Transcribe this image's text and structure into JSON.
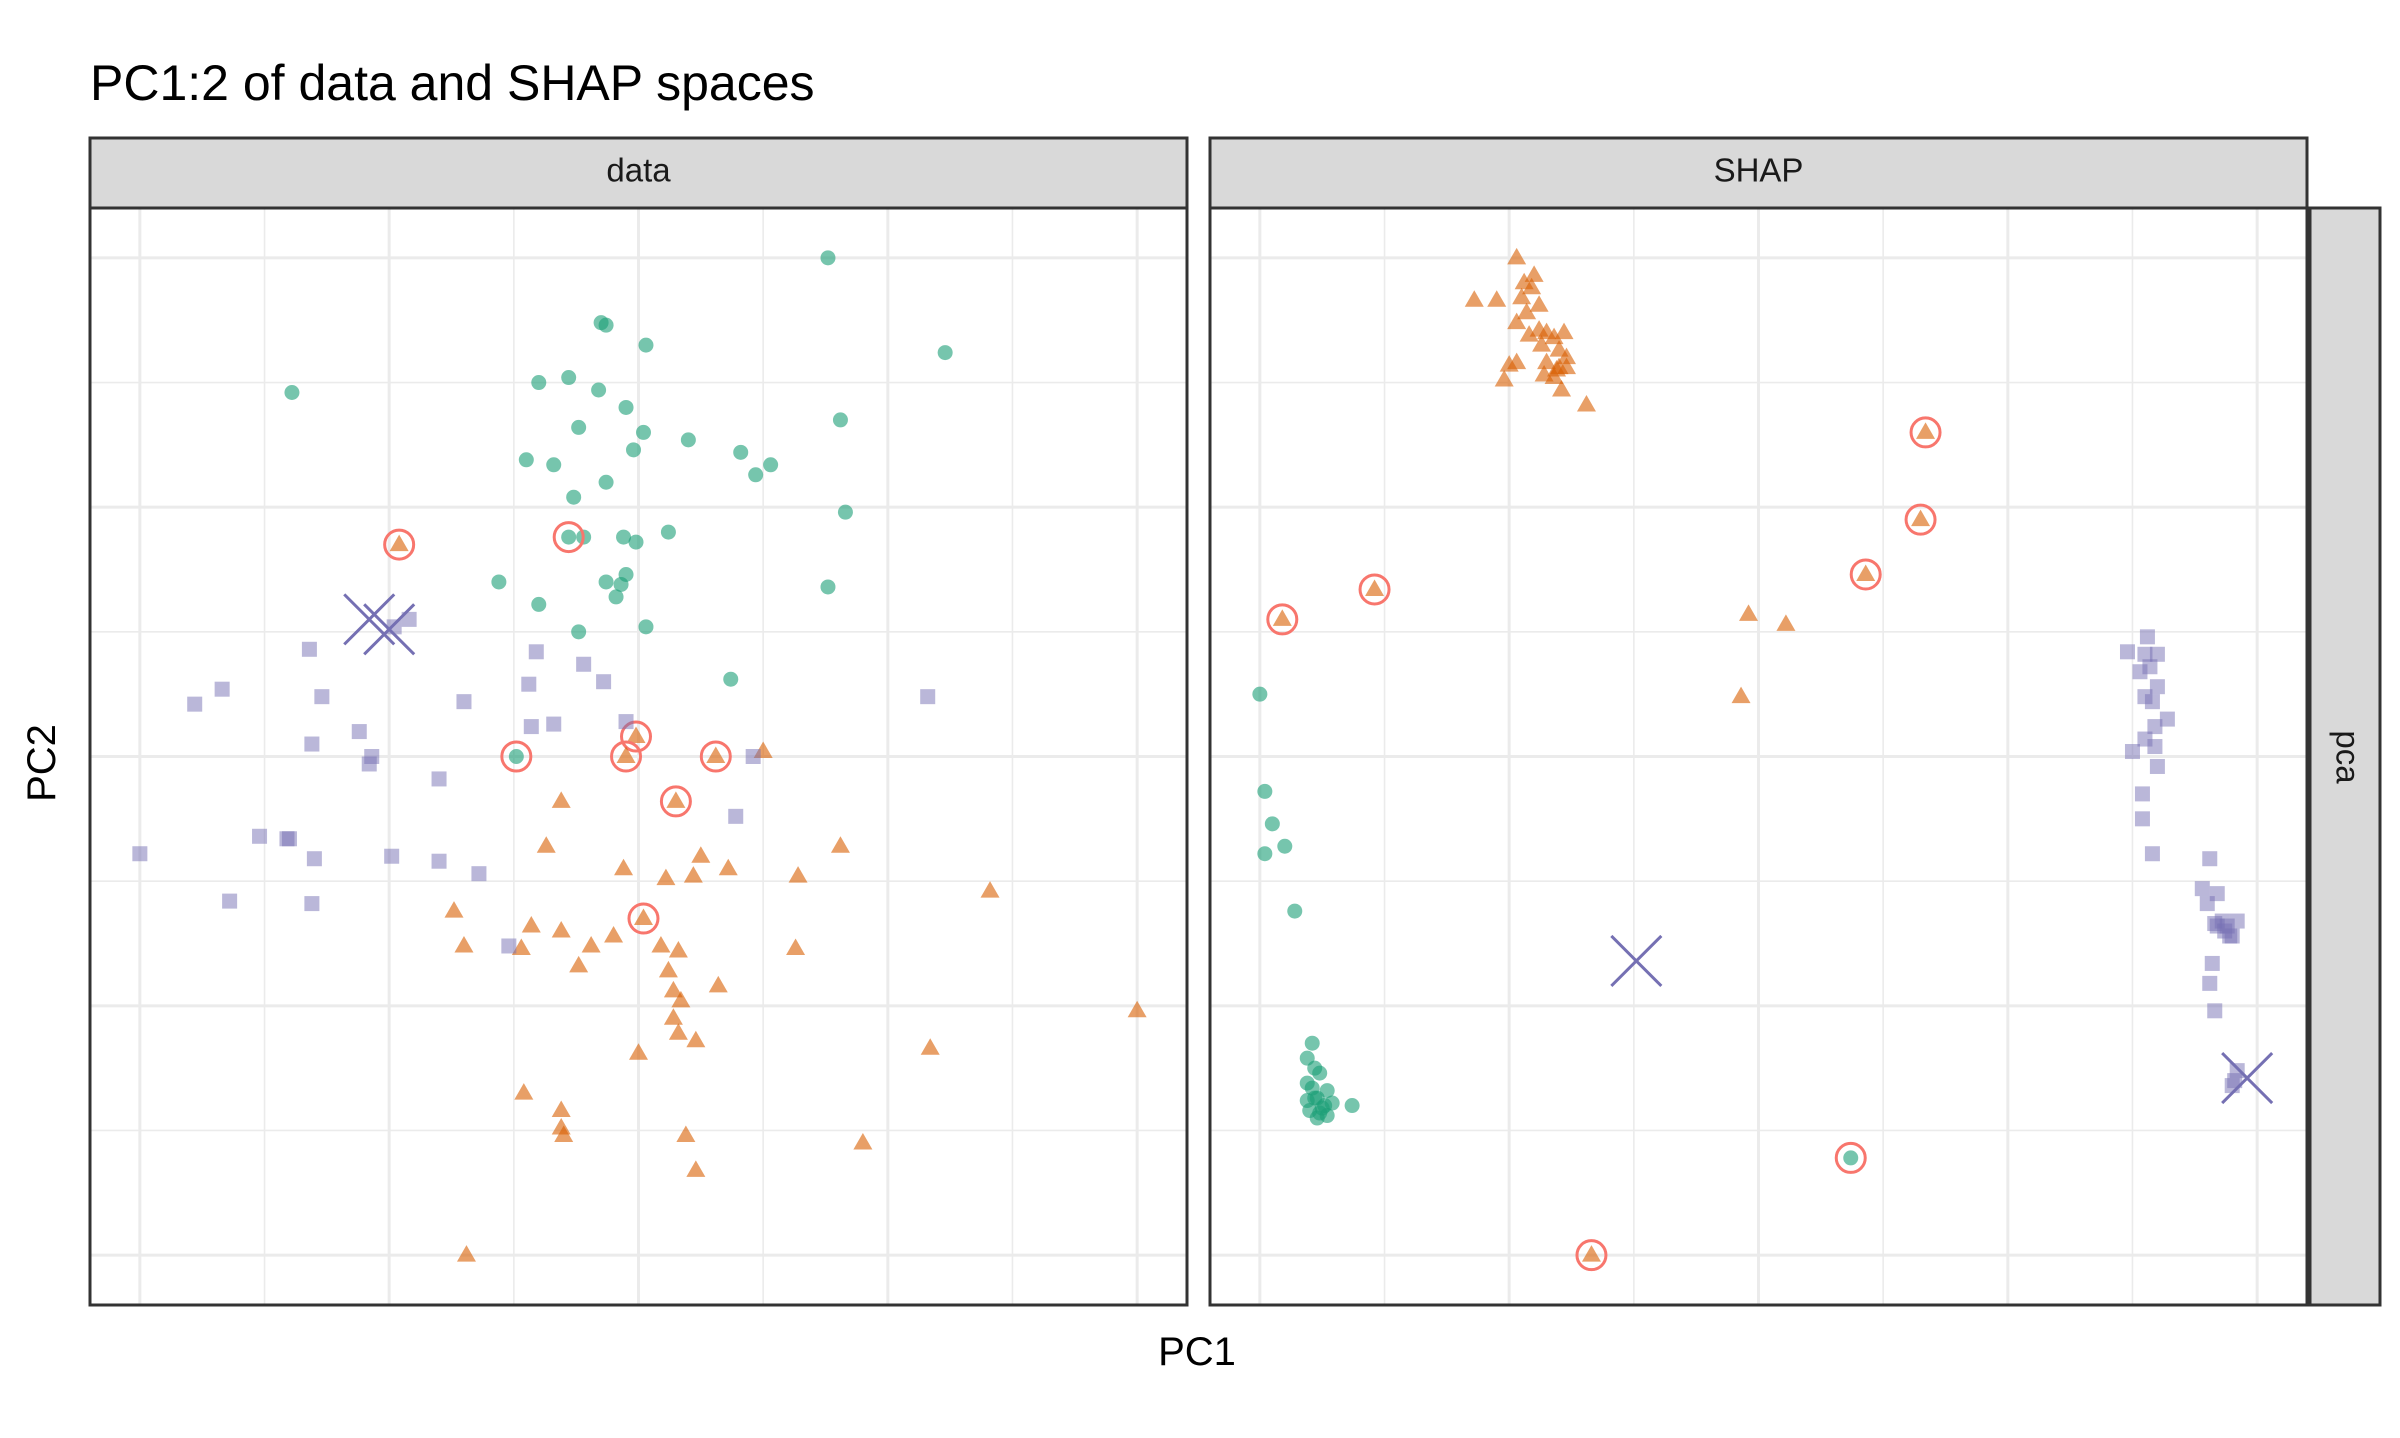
{
  "chart_data": {
    "type": "scatter",
    "title": "PC1:2 of data and SHAP spaces",
    "xlabel": "PC1",
    "ylabel": "PC2",
    "grid": true,
    "tick_labels_shown": false,
    "facet_row_label": "pca",
    "colors": {
      "circle": "#1B9E77",
      "triangle": "#D95F02",
      "square": "#7570B3",
      "highlight_ring": "#F8766D",
      "cross": "#7570B3"
    },
    "panels": [
      {
        "label": "data",
        "xlim": [
          -0.2,
          4.2
        ],
        "ylim": [
          -0.2,
          4.2
        ],
        "series": [
          {
            "shape": "circle",
            "points": [
              [
                2.76,
                4.0
              ],
              [
                1.85,
                3.74
              ],
              [
                1.87,
                3.73
              ],
              [
                2.03,
                3.65
              ],
              [
                3.23,
                3.62
              ],
              [
                0.61,
                3.46
              ],
              [
                1.6,
                3.5
              ],
              [
                1.72,
                3.52
              ],
              [
                1.84,
                3.47
              ],
              [
                1.95,
                3.4
              ],
              [
                2.81,
                3.35
              ],
              [
                2.02,
                3.3
              ],
              [
                1.76,
                3.32
              ],
              [
                1.98,
                3.23
              ],
              [
                2.2,
                3.27
              ],
              [
                1.55,
                3.19
              ],
              [
                1.66,
                3.17
              ],
              [
                2.41,
                3.22
              ],
              [
                2.53,
                3.17
              ],
              [
                2.47,
                3.13
              ],
              [
                1.87,
                3.1
              ],
              [
                1.74,
                3.04
              ],
              [
                2.83,
                2.98
              ],
              [
                1.94,
                2.88
              ],
              [
                1.78,
                2.88
              ],
              [
                2.12,
                2.9
              ],
              [
                1.99,
                2.86
              ],
              [
                1.87,
                2.7
              ],
              [
                1.44,
                2.7
              ],
              [
                2.76,
                2.68
              ],
              [
                1.91,
                2.64
              ],
              [
                1.6,
                2.61
              ],
              [
                2.03,
                2.52
              ],
              [
                1.95,
                2.73
              ],
              [
                1.93,
                2.69
              ],
              [
                2.37,
                2.31
              ],
              [
                1.76,
                2.5
              ]
            ],
            "highlighted": [
              [
                1.72,
                2.88
              ],
              [
                1.51,
                2.0
              ]
            ]
          },
          {
            "shape": "triangle",
            "points": [
              [
                2.5,
                2.02
              ],
              [
                1.69,
                1.82
              ],
              [
                2.81,
                1.64
              ],
              [
                1.63,
                1.64
              ],
              [
                1.94,
                1.55
              ],
              [
                2.36,
                1.55
              ],
              [
                2.22,
                1.52
              ],
              [
                2.25,
                1.6
              ],
              [
                2.11,
                1.51
              ],
              [
                2.64,
                1.52
              ],
              [
                3.41,
                1.46
              ],
              [
                1.26,
                1.38
              ],
              [
                1.3,
                1.24
              ],
              [
                1.57,
                1.32
              ],
              [
                1.69,
                1.3
              ],
              [
                1.9,
                1.28
              ],
              [
                1.81,
                1.24
              ],
              [
                1.53,
                1.23
              ],
              [
                2.09,
                1.24
              ],
              [
                1.76,
                1.16
              ],
              [
                2.12,
                1.14
              ],
              [
                2.16,
                1.22
              ],
              [
                2.63,
                1.23
              ],
              [
                2.32,
                1.08
              ],
              [
                2.14,
                1.06
              ],
              [
                2.17,
                1.02
              ],
              [
                4.0,
                0.98
              ],
              [
                2.14,
                0.95
              ],
              [
                2.16,
                0.89
              ],
              [
                2.23,
                0.86
              ],
              [
                2.0,
                0.81
              ],
              [
                3.17,
                0.83
              ],
              [
                1.54,
                0.65
              ],
              [
                1.69,
                0.58
              ],
              [
                1.69,
                0.51
              ],
              [
                1.7,
                0.48
              ],
              [
                2.19,
                0.48
              ],
              [
                2.9,
                0.45
              ],
              [
                2.23,
                0.34
              ],
              [
                1.31,
                0.0
              ]
            ],
            "highlighted": [
              [
                1.04,
                2.85
              ],
              [
                1.99,
                2.08
              ],
              [
                1.95,
                2.0
              ],
              [
                2.31,
                2.0
              ],
              [
                2.15,
                1.82
              ],
              [
                2.02,
                1.35
              ]
            ]
          },
          {
            "shape": "square",
            "points": [
              [
                1.08,
                2.55
              ],
              [
                1.02,
                2.52
              ],
              [
                0.68,
                2.43
              ],
              [
                0.33,
                2.27
              ],
              [
                0.22,
                2.21
              ],
              [
                3.16,
                2.24
              ],
              [
                0.73,
                2.24
              ],
              [
                0.88,
                2.1
              ],
              [
                1.3,
                2.22
              ],
              [
                1.56,
                2.29
              ],
              [
                1.59,
                2.42
              ],
              [
                1.78,
                2.37
              ],
              [
                1.86,
                2.3
              ],
              [
                1.95,
                2.14
              ],
              [
                1.66,
                2.13
              ],
              [
                0.69,
                2.05
              ],
              [
                0.93,
                2.0
              ],
              [
                0.92,
                1.97
              ],
              [
                1.57,
                2.12
              ],
              [
                2.46,
                2.0
              ],
              [
                1.2,
                1.91
              ],
              [
                0.48,
                1.68
              ],
              [
                0.59,
                1.67
              ],
              [
                0.6,
                1.67
              ],
              [
                0.36,
                1.42
              ],
              [
                0.7,
                1.59
              ],
              [
                1.01,
                1.6
              ],
              [
                1.2,
                1.58
              ],
              [
                1.36,
                1.53
              ],
              [
                1.48,
                1.24
              ],
              [
                2.39,
                1.76
              ],
              [
                0.69,
                1.41
              ],
              [
                0.0,
                1.61
              ]
            ]
          }
        ],
        "crosses": [
          [
            0.92,
            2.55
          ],
          [
            1.0,
            2.51
          ]
        ]
      },
      {
        "label": "SHAP",
        "xlim": [
          -0.2,
          4.2
        ],
        "ylim": [
          -0.2,
          4.2
        ],
        "series": [
          {
            "shape": "circle",
            "points": [
              [
                0.0,
                2.25
              ],
              [
                0.02,
                1.86
              ],
              [
                0.05,
                1.73
              ],
              [
                0.1,
                1.64
              ],
              [
                0.02,
                1.61
              ],
              [
                0.14,
                1.38
              ],
              [
                0.21,
                0.85
              ],
              [
                0.19,
                0.79
              ],
              [
                0.22,
                0.75
              ],
              [
                0.24,
                0.73
              ],
              [
                0.19,
                0.69
              ],
              [
                0.21,
                0.67
              ],
              [
                0.27,
                0.66
              ],
              [
                0.23,
                0.63
              ],
              [
                0.19,
                0.62
              ],
              [
                0.26,
                0.6
              ],
              [
                0.29,
                0.61
              ],
              [
                0.2,
                0.58
              ],
              [
                0.24,
                0.57
              ],
              [
                0.37,
                0.6
              ],
              [
                0.23,
                0.55
              ],
              [
                0.27,
                0.56
              ],
              [
                0.22,
                0.63
              ],
              [
                0.25,
                0.59
              ]
            ],
            "highlighted": [
              [
                2.37,
                0.39
              ]
            ]
          },
          {
            "shape": "triangle",
            "points": [
              [
                1.03,
                4.0
              ],
              [
                1.1,
                3.93
              ],
              [
                1.06,
                3.9
              ],
              [
                1.09,
                3.88
              ],
              [
                0.86,
                3.83
              ],
              [
                0.95,
                3.83
              ],
              [
                1.05,
                3.84
              ],
              [
                1.12,
                3.81
              ],
              [
                1.07,
                3.78
              ],
              [
                1.03,
                3.74
              ],
              [
                1.12,
                3.71
              ],
              [
                1.15,
                3.7
              ],
              [
                1.18,
                3.68
              ],
              [
                1.22,
                3.7
              ],
              [
                1.08,
                3.69
              ],
              [
                1.13,
                3.65
              ],
              [
                1.2,
                3.63
              ],
              [
                1.23,
                3.6
              ],
              [
                1.15,
                3.58
              ],
              [
                1.03,
                3.58
              ],
              [
                1.2,
                3.56
              ],
              [
                1.0,
                3.57
              ],
              [
                1.14,
                3.53
              ],
              [
                1.19,
                3.55
              ],
              [
                1.23,
                3.56
              ],
              [
                1.18,
                3.52
              ],
              [
                0.98,
                3.51
              ],
              [
                1.21,
                3.47
              ],
              [
                1.31,
                3.41
              ],
              [
                1.96,
                2.57
              ],
              [
                2.11,
                2.53
              ],
              [
                1.93,
                2.24
              ]
            ],
            "highlighted": [
              [
                2.67,
                3.3
              ],
              [
                2.65,
                2.95
              ],
              [
                2.43,
                2.73
              ],
              [
                0.46,
                2.67
              ],
              [
                0.09,
                2.55
              ],
              [
                1.33,
                0.0
              ]
            ]
          },
          {
            "shape": "square",
            "points": [
              [
                3.56,
                2.48
              ],
              [
                3.48,
                2.42
              ],
              [
                3.6,
                2.41
              ],
              [
                3.55,
                2.41
              ],
              [
                3.53,
                2.34
              ],
              [
                3.57,
                2.36
              ],
              [
                3.6,
                2.28
              ],
              [
                3.58,
                2.22
              ],
              [
                3.55,
                2.24
              ],
              [
                3.64,
                2.15
              ],
              [
                3.59,
                2.12
              ],
              [
                3.55,
                2.07
              ],
              [
                3.59,
                2.04
              ],
              [
                3.5,
                2.02
              ],
              [
                3.6,
                1.96
              ],
              [
                3.54,
                1.85
              ],
              [
                3.54,
                1.75
              ],
              [
                3.58,
                1.61
              ],
              [
                3.81,
                1.59
              ],
              [
                3.78,
                1.47
              ],
              [
                3.84,
                1.45
              ],
              [
                3.8,
                1.41
              ],
              [
                3.83,
                1.33
              ],
              [
                3.86,
                1.34
              ],
              [
                3.84,
                1.32
              ],
              [
                3.87,
                1.3
              ],
              [
                3.88,
                1.32
              ],
              [
                3.92,
                1.34
              ],
              [
                3.9,
                1.28
              ],
              [
                3.89,
                1.28
              ],
              [
                3.82,
                1.17
              ],
              [
                3.81,
                1.09
              ],
              [
                3.83,
                0.98
              ],
              [
                3.92,
                0.74
              ],
              [
                3.91,
                0.7
              ],
              [
                3.9,
                0.68
              ]
            ]
          }
        ],
        "crosses": [
          [
            1.51,
            1.18
          ],
          [
            3.96,
            0.71
          ]
        ]
      }
    ]
  }
}
